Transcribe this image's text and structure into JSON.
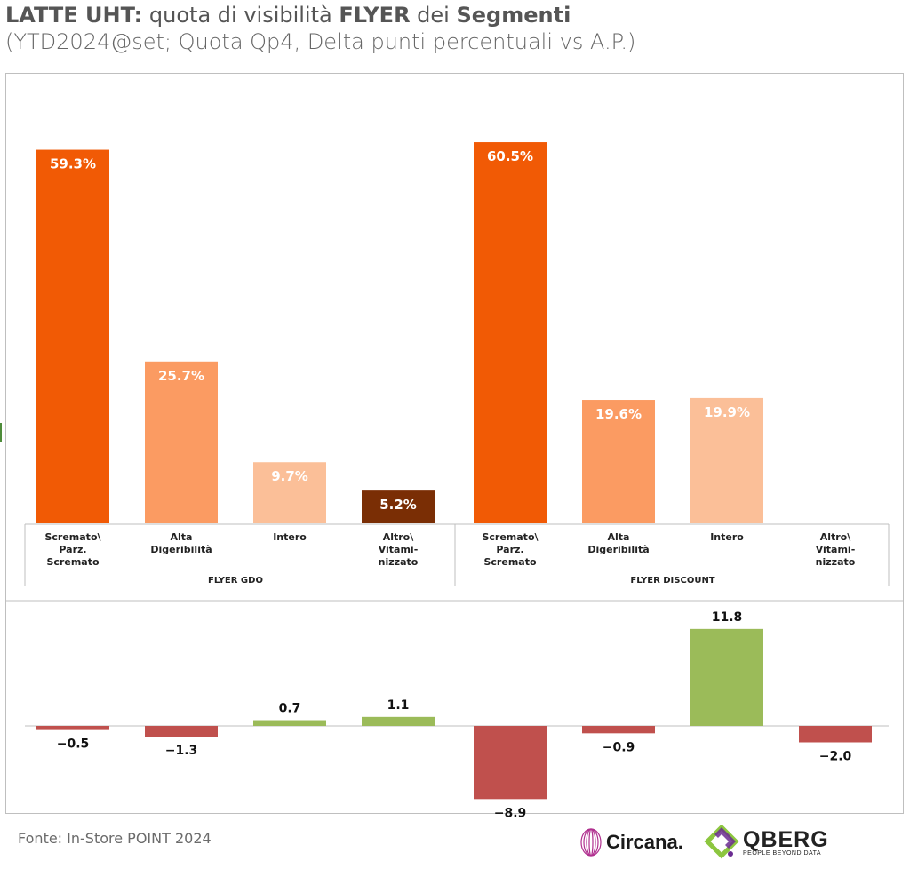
{
  "title": {
    "part1": "LATTE UHT:",
    "part2": " quota di visibilità ",
    "part3": "FLYER",
    "part4": " dei ",
    "part5": "Segmenti"
  },
  "subtitle": "(YTD2024@set; Quota Qp4, Delta punti percentuali vs A.P.)",
  "footer": {
    "source": "Fonte: In-Store POINT 2024"
  },
  "logos": {
    "circana": "Circana.",
    "qberg": "QBERG",
    "qberg_tagline": "PEOPLE BEYOND DATA"
  },
  "colors": {
    "scremato": "#f15a05",
    "alta": "#fb9b62",
    "intero": "#fbbf98",
    "altro": "#7a2e05",
    "pos": "#9bbb59",
    "neg": "#c0504d"
  },
  "chart_data": [
    {
      "type": "bar",
      "groups": [
        "FLYER GDO",
        "FLYER DISCOUNT"
      ],
      "categories": [
        [
          "Scremato\\",
          "Parz.",
          "Scremato"
        ],
        [
          "Alta",
          "Digeribilità"
        ],
        [
          "Intero"
        ],
        [
          "Altro\\",
          "Vitami-",
          "nizzato"
        ]
      ],
      "series": [
        {
          "group": "FLYER GDO",
          "values": [
            59.3,
            25.7,
            9.7,
            5.2
          ],
          "labels": [
            "59.3%",
            "25.7%",
            "9.7%",
            "5.2%"
          ]
        },
        {
          "group": "FLYER DISCOUNT",
          "values": [
            60.5,
            19.6,
            19.9,
            0
          ],
          "labels": [
            "60.5%",
            "19.6%",
            "19.9%",
            ""
          ]
        }
      ],
      "ylim": [
        0,
        65
      ]
    },
    {
      "type": "bar",
      "groups": [
        "FLYER GDO",
        "FLYER DISCOUNT"
      ],
      "series": [
        {
          "group": "FLYER GDO",
          "values": [
            -0.5,
            -1.3,
            0.7,
            1.1
          ],
          "labels": [
            "−0.5",
            "−1.3",
            "0.7",
            "1.1"
          ]
        },
        {
          "group": "FLYER DISCOUNT",
          "values": [
            -8.9,
            -0.9,
            11.8,
            -2.0
          ],
          "labels": [
            "−8.9",
            "−0.9",
            "11.8",
            "−2.0"
          ]
        }
      ],
      "ylim": [
        -10,
        13
      ]
    }
  ]
}
